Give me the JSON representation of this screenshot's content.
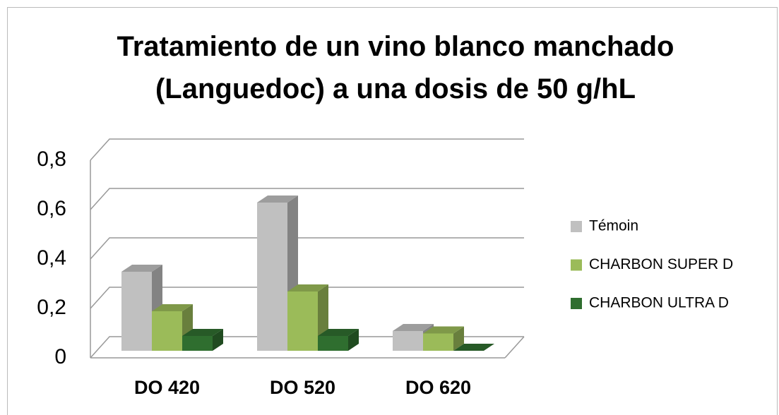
{
  "chart_data": {
    "type": "bar3d",
    "title": "Tratamiento de un vino blanco manchado (Languedoc) a una dosis de 50 g/hL",
    "categories": [
      "DO 420",
      "DO 520",
      "DO 620"
    ],
    "series": [
      {
        "name": "Témoin",
        "color": "#c0c0c0",
        "values": [
          0.32,
          0.6,
          0.08
        ]
      },
      {
        "name": "CHARBON SUPER D",
        "color": "#9bbb59",
        "values": [
          0.16,
          0.24,
          0.07
        ]
      },
      {
        "name": "CHARBON ULTRA D",
        "color": "#2f6e2f",
        "values": [
          0.06,
          0.06,
          0
        ]
      }
    ],
    "ylim": [
      0,
      0.8
    ],
    "yticks": [
      0,
      {
        "value": 0.2,
        "label": "0,2"
      },
      {
        "value": 0.4,
        "label": "0,4"
      },
      {
        "value": 0.6,
        "label": "0,6"
      },
      {
        "value": 0.8,
        "label": "0,8"
      }
    ],
    "grid": true,
    "legend": "right"
  }
}
